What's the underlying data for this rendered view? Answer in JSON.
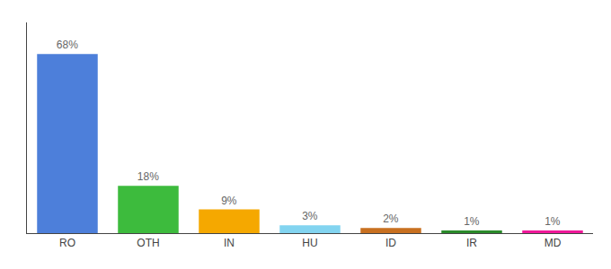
{
  "chart_data": {
    "type": "bar",
    "categories": [
      "RO",
      "OTH",
      "IN",
      "HU",
      "ID",
      "IR",
      "MD"
    ],
    "values": [
      68,
      18,
      9,
      3,
      2,
      1,
      1
    ],
    "value_labels": [
      "68%",
      "18%",
      "9%",
      "3%",
      "2%",
      "1%",
      "1%"
    ],
    "colors": [
      "#4d7fda",
      "#3dbb3d",
      "#f5a800",
      "#82d4f0",
      "#c87020",
      "#2a8a2a",
      "#f0189a"
    ],
    "ylim": [
      0,
      80
    ],
    "grid": false,
    "data_labels": true,
    "tick_labels": "x"
  }
}
